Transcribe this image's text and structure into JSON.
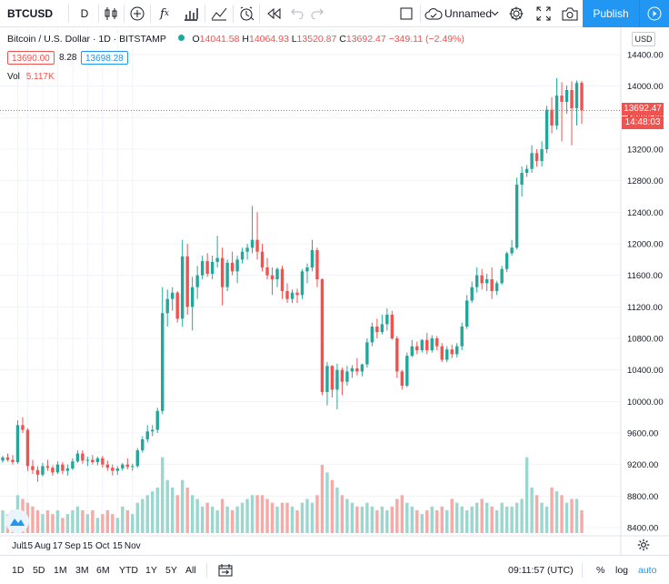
{
  "toolbar": {
    "symbol": "BTCUSD",
    "interval": "D",
    "layout_name": "Unnamed",
    "publish_label": "Publish"
  },
  "legend": {
    "name": "Bitcoin / U.S. Dollar · 1D · BITSTAMP",
    "open_label": "O",
    "open": "14041.58",
    "high_label": "H",
    "high": "14064.93",
    "low_label": "L",
    "low": "13520.87",
    "close_label": "C",
    "close": "13692.47",
    "change": "−349.11 (−2.49%)",
    "bid": "13690.00",
    "spread": "8.28",
    "ask": "13698.28",
    "vol_label": "Vol",
    "vol_value": "5.117K"
  },
  "price_axis": {
    "currency": "USD",
    "last_price": "13692.47",
    "countdown": "14:48:03",
    "ticks": [
      "14400.00",
      "14000.00",
      "13600.00",
      "13200.00",
      "12800.00",
      "12400.00",
      "12000.00",
      "11600.00",
      "11200.00",
      "10800.00",
      "10400.00",
      "10000.00",
      "9600.00",
      "9200.00",
      "8800.00",
      "8400.00"
    ]
  },
  "time_axis": {
    "labels": [
      "Jul",
      "15",
      "Aug",
      "17",
      "Sep",
      "15",
      "Oct",
      "15",
      "Nov"
    ]
  },
  "bottombar": {
    "ranges": [
      "1D",
      "5D",
      "1M",
      "3M",
      "6M",
      "YTD",
      "1Y",
      "5Y",
      "All"
    ],
    "clock": "09:11:57 (UTC)",
    "percent": "%",
    "log": "log",
    "auto": "auto"
  },
  "colors": {
    "up": "#26a69a",
    "down": "#ef5350",
    "up_volume": "#9bd6cf",
    "down_volume": "#f6a9a5",
    "accent": "#2196f3"
  },
  "chart_data": {
    "type": "candlestick",
    "symbol": "BTCUSD",
    "interval": "1D",
    "ylim": [
      8250,
      14550
    ],
    "x_labels": [
      "Jul",
      "15",
      "Aug",
      "17",
      "Sep",
      "15",
      "Oct",
      "15",
      "Nov"
    ],
    "candles": [
      [
        9250,
        9310,
        9220,
        9290
      ],
      [
        9290,
        9340,
        9240,
        9260
      ],
      [
        9260,
        9320,
        9200,
        9230
      ],
      [
        9230,
        9760,
        9210,
        9700
      ],
      [
        9700,
        9800,
        9600,
        9640
      ],
      [
        9640,
        9660,
        9120,
        9180
      ],
      [
        9180,
        9260,
        9080,
        9130
      ],
      [
        9130,
        9180,
        8980,
        9070
      ],
      [
        9070,
        9220,
        9050,
        9180
      ],
      [
        9180,
        9260,
        9120,
        9160
      ],
      [
        9160,
        9190,
        9060,
        9100
      ],
      [
        9100,
        9240,
        9080,
        9200
      ],
      [
        9200,
        9230,
        9080,
        9120
      ],
      [
        9120,
        9200,
        9060,
        9150
      ],
      [
        9150,
        9280,
        9130,
        9240
      ],
      [
        9240,
        9380,
        9220,
        9340
      ],
      [
        9340,
        9380,
        9210,
        9250
      ],
      [
        9250,
        9300,
        9180,
        9260
      ],
      [
        9260,
        9320,
        9200,
        9230
      ],
      [
        9230,
        9300,
        9190,
        9280
      ],
      [
        9280,
        9310,
        9160,
        9200
      ],
      [
        9200,
        9250,
        9120,
        9160
      ],
      [
        9160,
        9200,
        9060,
        9120
      ],
      [
        9120,
        9180,
        9070,
        9150
      ],
      [
        9150,
        9220,
        9120,
        9200
      ],
      [
        9200,
        9280,
        9140,
        9170
      ],
      [
        9170,
        9210,
        9120,
        9180
      ],
      [
        9180,
        9410,
        9160,
        9380
      ],
      [
        9380,
        9560,
        9350,
        9520
      ],
      [
        9520,
        9700,
        9480,
        9620
      ],
      [
        9620,
        9700,
        9560,
        9640
      ],
      [
        9640,
        9920,
        9600,
        9880
      ],
      [
        9880,
        11450,
        9840,
        11120
      ],
      [
        11120,
        11420,
        10950,
        11300
      ],
      [
        11300,
        11450,
        11150,
        11380
      ],
      [
        11380,
        11400,
        11000,
        11050
      ],
      [
        11050,
        12050,
        10950,
        11840
      ],
      [
        11840,
        12000,
        11100,
        11200
      ],
      [
        11200,
        11580,
        10900,
        11450
      ],
      [
        11450,
        11720,
        11300,
        11600
      ],
      [
        11600,
        11850,
        11550,
        11780
      ],
      [
        11780,
        11880,
        11580,
        11620
      ],
      [
        11620,
        11850,
        11550,
        11770
      ],
      [
        11770,
        12100,
        11700,
        11820
      ],
      [
        11820,
        11950,
        11220,
        11450
      ],
      [
        11450,
        11800,
        11400,
        11760
      ],
      [
        11760,
        11900,
        11600,
        11650
      ],
      [
        11650,
        11850,
        11500,
        11800
      ],
      [
        11800,
        11950,
        11750,
        11900
      ],
      [
        11900,
        12000,
        11800,
        11950
      ],
      [
        11950,
        12480,
        11880,
        12050
      ],
      [
        12050,
        12400,
        11800,
        11900
      ],
      [
        11900,
        12000,
        11650,
        11700
      ],
      [
        11700,
        11820,
        11550,
        11600
      ],
      [
        11600,
        11700,
        11350,
        11550
      ],
      [
        11550,
        11700,
        11450,
        11680
      ],
      [
        11680,
        11720,
        11300,
        11400
      ],
      [
        11400,
        11500,
        11250,
        11300
      ],
      [
        11300,
        11420,
        11250,
        11380
      ],
      [
        11380,
        11430,
        11250,
        11350
      ],
      [
        11350,
        11680,
        11300,
        11650
      ],
      [
        11650,
        11750,
        11500,
        11700
      ],
      [
        11700,
        12050,
        11650,
        11920
      ],
      [
        11920,
        11950,
        11450,
        11550
      ],
      [
        11550,
        11560,
        10080,
        10120
      ],
      [
        10120,
        10500,
        9950,
        10450
      ],
      [
        10450,
        10460,
        10050,
        10150
      ],
      [
        10150,
        10480,
        9900,
        10400
      ],
      [
        10400,
        10430,
        10080,
        10250
      ],
      [
        10250,
        10450,
        10200,
        10380
      ],
      [
        10380,
        10460,
        10300,
        10420
      ],
      [
        10420,
        10550,
        10330,
        10380
      ],
      [
        10380,
        10480,
        10320,
        10470
      ],
      [
        10470,
        10800,
        10430,
        10750
      ],
      [
        10750,
        11000,
        10700,
        10950
      ],
      [
        10950,
        11050,
        10800,
        10880
      ],
      [
        10880,
        11100,
        10850,
        10980
      ],
      [
        10980,
        11180,
        10900,
        11100
      ],
      [
        11100,
        11150,
        10780,
        10800
      ],
      [
        10800,
        10830,
        10300,
        10380
      ],
      [
        10380,
        10400,
        10150,
        10200
      ],
      [
        10200,
        10620,
        10180,
        10580
      ],
      [
        10580,
        10780,
        10560,
        10700
      ],
      [
        10700,
        10760,
        10600,
        10650
      ],
      [
        10650,
        10790,
        10620,
        10780
      ],
      [
        10780,
        10870,
        10600,
        10650
      ],
      [
        10650,
        10840,
        10620,
        10800
      ],
      [
        10800,
        10830,
        10650,
        10700
      ],
      [
        10700,
        10740,
        10500,
        10530
      ],
      [
        10530,
        10700,
        10500,
        10660
      ],
      [
        10660,
        10720,
        10550,
        10600
      ],
      [
        10600,
        10740,
        10560,
        10700
      ],
      [
        10700,
        11000,
        10650,
        10950
      ],
      [
        10950,
        11350,
        10920,
        11280
      ],
      [
        11280,
        11520,
        11250,
        11450
      ],
      [
        11450,
        11700,
        11380,
        11600
      ],
      [
        11600,
        11680,
        11420,
        11500
      ],
      [
        11500,
        11620,
        11400,
        11550
      ],
      [
        11550,
        11700,
        11300,
        11400
      ],
      [
        11400,
        11530,
        11350,
        11500
      ],
      [
        11500,
        11720,
        11480,
        11680
      ],
      [
        11680,
        11900,
        11640,
        11880
      ],
      [
        11880,
        12050,
        11850,
        11950
      ],
      [
        11950,
        12840,
        11930,
        12750
      ],
      [
        12750,
        12980,
        12600,
        12900
      ],
      [
        12900,
        13000,
        12850,
        12950
      ],
      [
        12950,
        13250,
        12900,
        13150
      ],
      [
        13150,
        13200,
        12980,
        13050
      ],
      [
        13050,
        13300,
        12980,
        13200
      ],
      [
        13200,
        13750,
        13150,
        13700
      ],
      [
        13700,
        13860,
        13400,
        13500
      ],
      [
        13500,
        14100,
        13450,
        13880
      ],
      [
        13880,
        14050,
        13300,
        13800
      ],
      [
        13800,
        14010,
        13650,
        13950
      ],
      [
        13950,
        14060,
        13250,
        13720
      ],
      [
        13720,
        14070,
        13500,
        14040
      ],
      [
        14041.58,
        14064.93,
        13520.87,
        13692.47
      ]
    ],
    "volume_scale": [
      0,
      12
    ],
    "volumes": [
      3,
      2.5,
      3,
      5,
      4.5,
      4,
      3.5,
      3,
      2.5,
      3,
      2.5,
      3,
      2,
      2.5,
      3,
      3.5,
      3,
      2.5,
      3,
      2,
      2.5,
      3,
      2.5,
      2,
      3.5,
      3,
      2.5,
      4,
      4.5,
      5,
      5.5,
      6,
      10,
      7,
      6,
      5,
      7,
      6,
      5,
      4.5,
      3.5,
      4,
      3.5,
      3,
      4.5,
      3.5,
      3,
      3.5,
      4,
      4.5,
      5,
      5,
      5,
      4.5,
      4,
      3.5,
      4,
      4,
      3.5,
      3,
      4,
      4.5,
      4,
      5,
      9,
      8,
      7,
      6,
      5,
      4.5,
      4,
      3.5,
      3.5,
      4,
      3.5,
      3,
      3.5,
      3,
      3.5,
      4.5,
      5,
      4,
      3.5,
      3,
      2.5,
      3,
      3.5,
      3,
      3.5,
      3,
      4.5,
      4,
      3.5,
      3,
      3.5,
      4,
      4.5,
      4,
      3.5,
      3,
      4,
      3.5,
      3.5,
      4,
      4.5,
      10,
      6,
      5,
      4,
      3.5,
      6,
      5.5,
      5,
      4,
      4.5,
      4.5,
      3
    ]
  }
}
